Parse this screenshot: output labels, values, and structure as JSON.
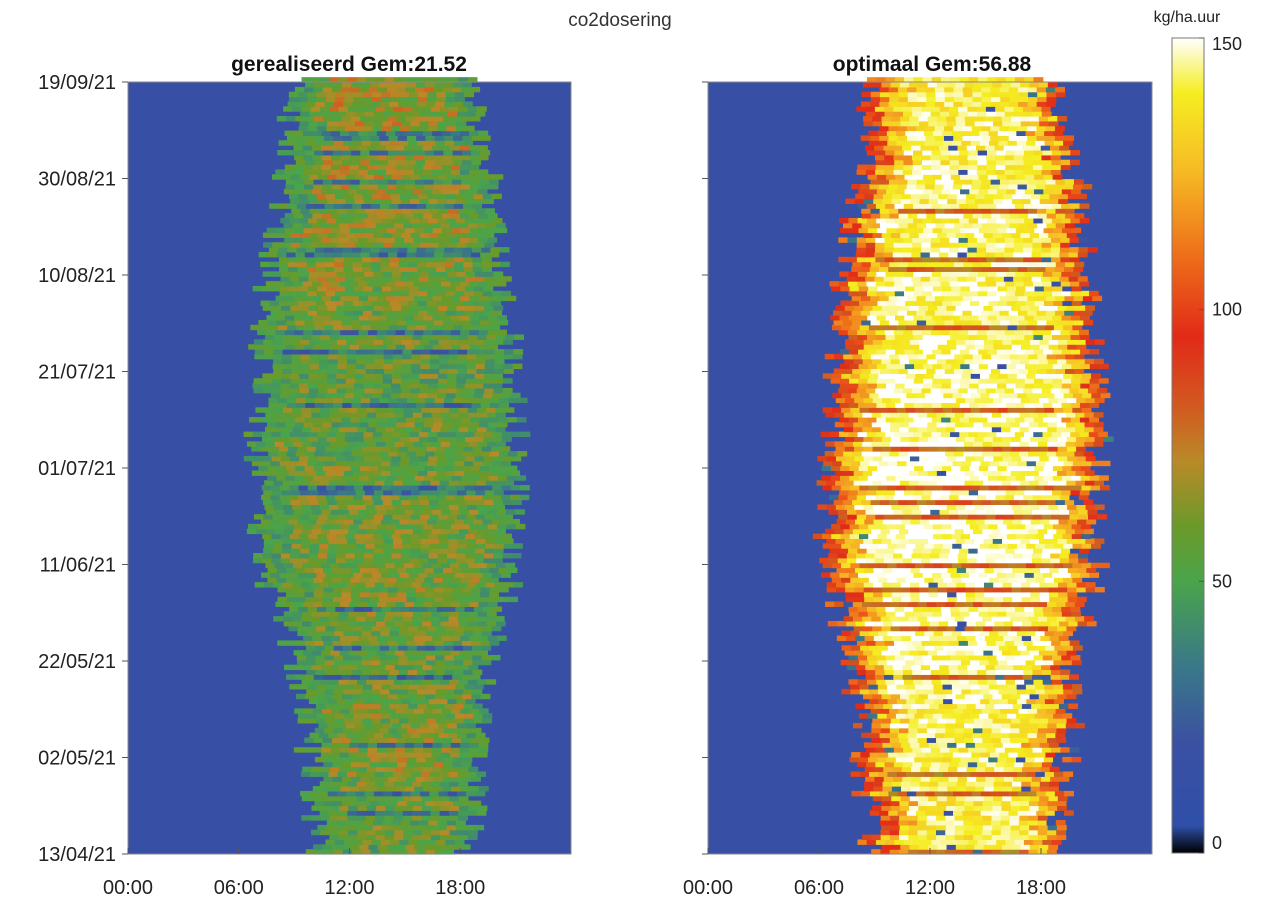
{
  "figure_title": "co2dosering",
  "colorbar": {
    "unit": "kg/ha.uur",
    "ticks": [
      0,
      50,
      100,
      150
    ],
    "range": [
      0,
      150
    ],
    "colormap": [
      {
        "v": 0,
        "color": "#000000"
      },
      {
        "v": 5,
        "color": "#2f4fa8"
      },
      {
        "v": 20,
        "color": "#3b50a3"
      },
      {
        "v": 35,
        "color": "#3a7a86"
      },
      {
        "v": 50,
        "color": "#4aa44a"
      },
      {
        "v": 60,
        "color": "#6a9a2a"
      },
      {
        "v": 72,
        "color": "#b88a28"
      },
      {
        "v": 82,
        "color": "#d25a20"
      },
      {
        "v": 95,
        "color": "#e12a18"
      },
      {
        "v": 110,
        "color": "#ee6f1a"
      },
      {
        "v": 125,
        "color": "#f6b824"
      },
      {
        "v": 140,
        "color": "#f5ee22"
      },
      {
        "v": 150,
        "color": "#ffffff"
      }
    ]
  },
  "chart_data": [
    {
      "type": "heatmap",
      "title": "gerealiseerd Gem:21.52",
      "mean": 21.52,
      "x_ticks": [
        "00:00",
        "06:00",
        "12:00",
        "18:00"
      ],
      "y_ticks": [
        "13/04/21",
        "02/05/21",
        "22/05/21",
        "11/06/21",
        "01/07/21",
        "21/07/21",
        "10/08/21",
        "30/08/21",
        "19/09/21"
      ],
      "x_range_hours": [
        0,
        24
      ],
      "y_range": [
        "13/04/21",
        "19/09/21"
      ],
      "background_value": 15,
      "daily_profile": [
        {
          "date": "13/04/21",
          "start_hour": 10.4,
          "end_hour": 18.3,
          "level": 55
        },
        {
          "date": "02/05/21",
          "start_hour": 9.8,
          "end_hour": 19.0,
          "level": 62
        },
        {
          "date": "22/05/21",
          "start_hour": 9.2,
          "end_hour": 19.3,
          "level": 58
        },
        {
          "date": "11/06/21",
          "start_hour": 7.2,
          "end_hour": 20.6,
          "level": 60
        },
        {
          "date": "01/07/21",
          "start_hour": 6.9,
          "end_hour": 20.8,
          "level": 58
        },
        {
          "date": "21/07/21",
          "start_hour": 7.2,
          "end_hour": 20.5,
          "level": 55
        },
        {
          "date": "10/08/21",
          "start_hour": 7.6,
          "end_hour": 20.1,
          "level": 62
        },
        {
          "date": "30/08/21",
          "start_hour": 8.5,
          "end_hour": 19.4,
          "level": 64
        },
        {
          "date": "19/09/21",
          "start_hour": 8.9,
          "end_hour": 18.5,
          "level": 66
        }
      ]
    },
    {
      "type": "heatmap",
      "title": "optimaal Gem:56.88",
      "mean": 56.88,
      "x_ticks": [
        "00:00",
        "06:00",
        "12:00",
        "18:00"
      ],
      "y_ticks": [
        "13/04/21",
        "02/05/21",
        "22/05/21",
        "11/06/21",
        "01/07/21",
        "21/07/21",
        "10/08/21",
        "30/08/21",
        "19/09/21"
      ],
      "x_range_hours": [
        0,
        24
      ],
      "y_range": [
        "13/04/21",
        "19/09/21"
      ],
      "background_value": 15,
      "daily_profile": [
        {
          "date": "13/04/21",
          "start_hour": 8.8,
          "end_hour": 18.6,
          "level": 140
        },
        {
          "date": "02/05/21",
          "start_hour": 8.4,
          "end_hour": 19.2,
          "level": 142
        },
        {
          "date": "22/05/21",
          "start_hour": 7.8,
          "end_hour": 19.6,
          "level": 145
        },
        {
          "date": "11/06/21",
          "start_hour": 6.4,
          "end_hour": 20.8,
          "level": 148
        },
        {
          "date": "01/07/21",
          "start_hour": 6.6,
          "end_hour": 21.0,
          "level": 147
        },
        {
          "date": "21/07/21",
          "start_hour": 7.0,
          "end_hour": 20.6,
          "level": 146
        },
        {
          "date": "10/08/21",
          "start_hour": 7.4,
          "end_hour": 20.2,
          "level": 144
        },
        {
          "date": "30/08/21",
          "start_hour": 8.2,
          "end_hour": 19.6,
          "level": 143
        },
        {
          "date": "19/09/21",
          "start_hour": 8.9,
          "end_hour": 18.5,
          "level": 140
        }
      ]
    }
  ]
}
